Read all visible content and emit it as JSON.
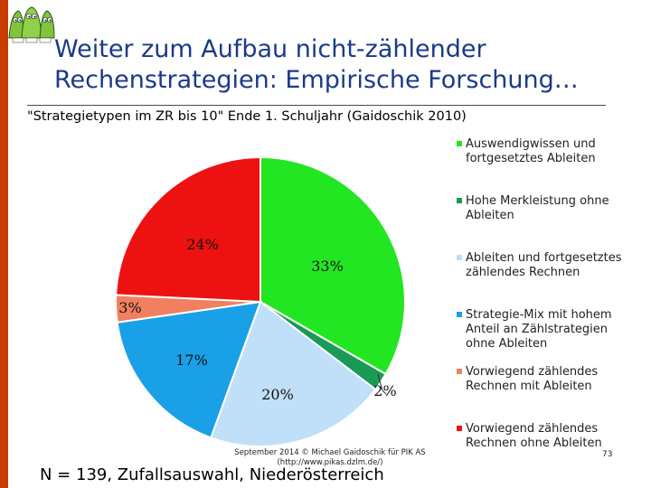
{
  "header": {
    "title_line1": "Weiter zum Aufbau nicht-zählender",
    "title_line2": "Rechenstrategien: Empirische Forschung…",
    "subtitle": "\"Strategietypen im ZR bis 10\" Ende 1. Schuljahr (Gaidoschik 2010)"
  },
  "colors": {
    "accent_bar": "#c83c00",
    "title": "#1a3a8a"
  },
  "logo": {
    "icon": "cartoon-characters-logo-icon"
  },
  "chart_data": {
    "type": "pie",
    "title": "",
    "start_angle_deg": 0,
    "direction": "clockwise",
    "slices": [
      {
        "label": "Auswendigwissen und fortgesetztes Ableiten",
        "value": 33,
        "data_label": "33%",
        "color": "#22e622"
      },
      {
        "label": "Hohe Merkleistung ohne Ableiten",
        "value": 2,
        "data_label": "2%",
        "color": "#1a9a55"
      },
      {
        "label": "Ableiten und fortgesetztes zählendes Rechnen",
        "value": 20,
        "data_label": "20%",
        "color": "#bfe0f8"
      },
      {
        "label": "Strategie-Mix mit hohem Anteil an Zählstrategien ohne Ableiten",
        "value": 17,
        "data_label": "17%",
        "color": "#1aa0e6"
      },
      {
        "label": "Vorwiegend zählendes Rechnen mit Ableiten",
        "value": 3,
        "data_label": "3%",
        "color": "#f08060"
      },
      {
        "label": "Vorwiegend zählendes Rechnen ohne Ableiten",
        "value": 24,
        "data_label": "24%",
        "color": "#ee1111"
      }
    ],
    "legend_position": "right"
  },
  "legend": {
    "items": [
      {
        "label_line1": "Auswendigwissen und",
        "label_line2": "fortgesetztes Ableiten",
        "color": "#22e622"
      },
      {
        "label_line1": "Hohe Merkleistung ohne",
        "label_line2": "Ableiten",
        "color": "#1a9a55"
      },
      {
        "label_line1": "Ableiten und fortgesetztes",
        "label_line2": "zählendes Rechnen",
        "color": "#bfe0f8"
      },
      {
        "label_line1": "Strategie-Mix mit hohem",
        "label_line2": "Anteil an Zählstrategien",
        "label_line3": "ohne Ableiten",
        "color": "#1aa0e6"
      },
      {
        "label_line1": "Vorwiegend zählendes",
        "label_line2": "Rechnen mit Ableiten",
        "color": "#f08060"
      },
      {
        "label_line1": "Vorwiegend zählendes",
        "label_line2": "Rechnen ohne Ableiten",
        "color": "#ee1111"
      }
    ]
  },
  "footer": {
    "credit_line1": "September 2014 © Michael Gaidoschik für PIK AS",
    "credit_line2": "(http://www.pikas.dzlm.de/)",
    "note": "N = 139, Zufallsauswahl, Niederösterreich",
    "page_number": "73"
  }
}
